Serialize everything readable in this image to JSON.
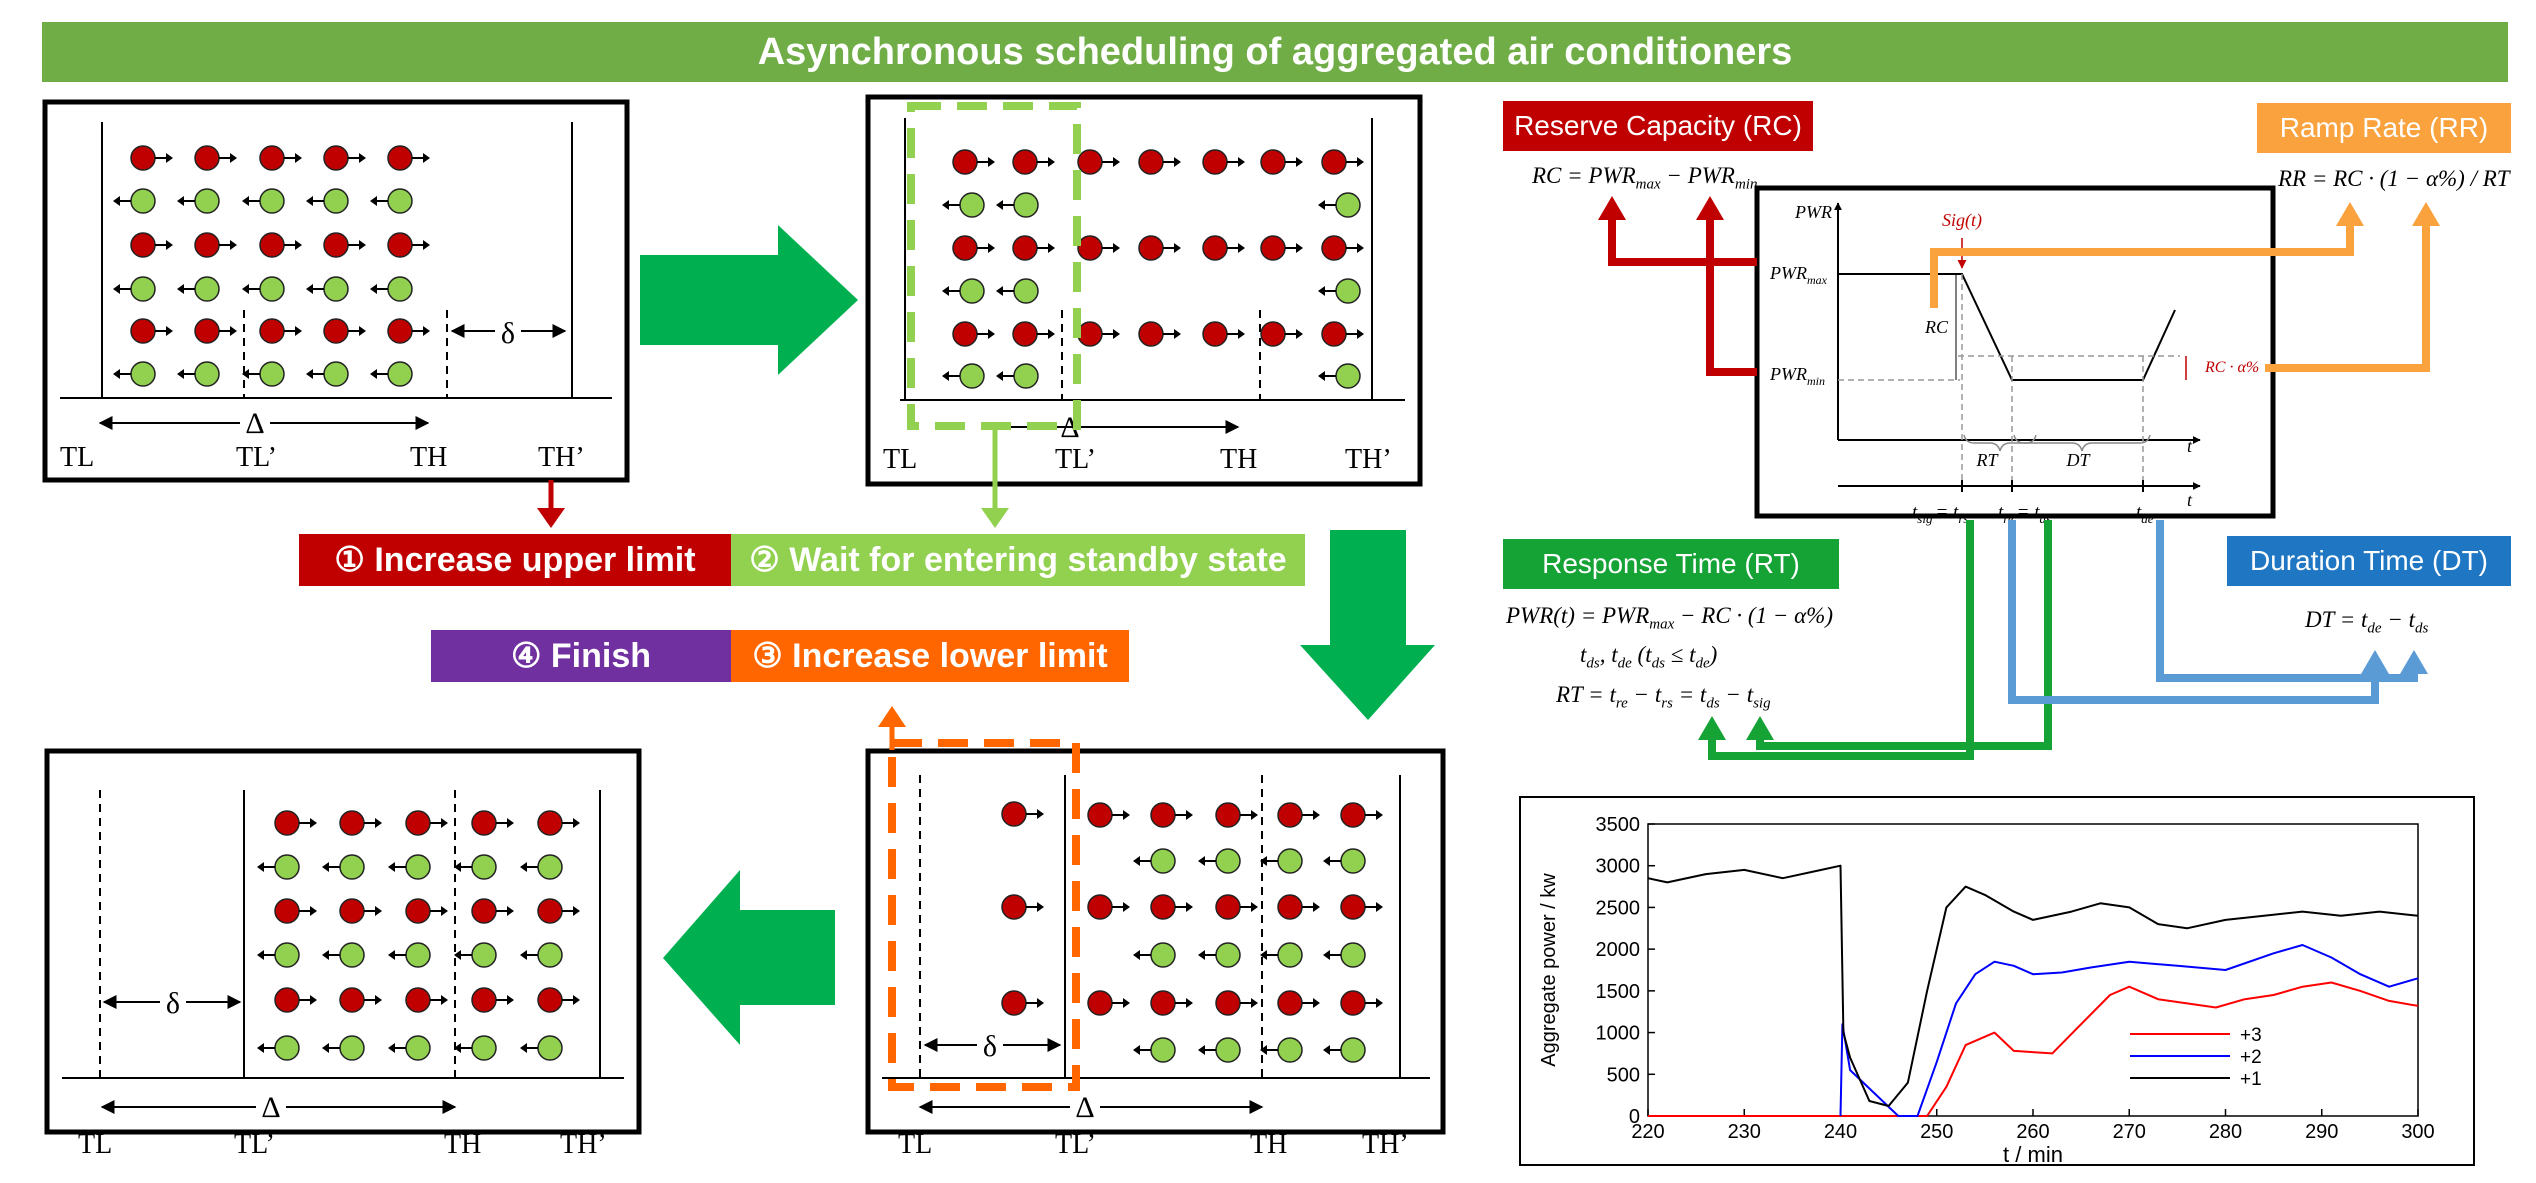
{
  "title": "Asynchronous scheduling of aggregated air conditioners",
  "colors": {
    "banner": "#70ad47",
    "red": "#c00000",
    "light_green": "#92d050",
    "purple": "#7030a0",
    "orange": "#ff6600",
    "flow_arrow_green": "#00b050",
    "rc_red": "#c00000",
    "rr_orange": "#f9a23e",
    "rt_green": "#16a336",
    "dt_blue": "#1f77c4",
    "on_unit_red": "#c00000",
    "off_unit_green": "#92d050"
  },
  "steps": {
    "increase_upper": "① Increase upper limit",
    "wait_standby": "② Wait for entering standby state",
    "finish": "④ Finish",
    "increase_lower": "③ Increase lower limit"
  },
  "state_labels": {
    "t_low": "TL",
    "t_low_prime": "TL’",
    "t_high": "TH",
    "t_high_prime": "TH’",
    "delta_upper": "Δ",
    "delta_lower": "δ"
  },
  "metrics": {
    "rc": "Reserve Capacity (RC)",
    "rr": "Ramp Rate (RR)",
    "rt": "Response Time (RT)",
    "dt": "Duration Time (DT)"
  },
  "equations": {
    "rc": [
      "RC = PWR",
      "max",
      " − PWR",
      "min"
    ],
    "rr": "RR = RC · (1 − α%) / RT",
    "pwr": [
      "PWR(t) = PWR",
      "max",
      " − RC · (1 − α%)"
    ],
    "tds": [
      "t",
      "ds",
      ", t",
      "de",
      " (t",
      "ds",
      " ≤ t",
      "de",
      ")"
    ],
    "rt": [
      "RT = t",
      "re",
      " − t",
      "rs",
      " = t",
      "ds",
      " − t",
      "sig"
    ],
    "dt": [
      "DT = t",
      "de",
      " − t",
      "ds"
    ]
  },
  "profile": {
    "y_axis": "PWR",
    "x_axis": "t",
    "sig": "Sig(t)",
    "pwr_max": "PWR",
    "pwr_max_sub": "max",
    "pwr_min": "PWR",
    "pwr_min_sub": "min",
    "rc": "RC",
    "rc_alpha": "RC · α%",
    "rt": "RT",
    "dt": "DT",
    "t_sig": "t",
    "t_sig_sub": "sig",
    "t_rs": "= t",
    "t_rs_sub": "rs",
    "t_re": "t",
    "t_re_sub": "re",
    "t_ds": "= t",
    "t_ds_sub": "ds",
    "t_de": "t",
    "t_de_sub": "de"
  },
  "chart_data": {
    "type": "line",
    "title": "",
    "xlabel": "t / min",
    "ylabel": "Aggregate power / kw",
    "xlim": [
      220,
      300
    ],
    "ylim": [
      0,
      3500
    ],
    "x_ticks": [
      "220",
      "230",
      "240",
      "250",
      "260",
      "270",
      "280",
      "290",
      "300"
    ],
    "y_ticks": [
      "0",
      "500",
      "1000",
      "1500",
      "2000",
      "2500",
      "3000",
      "3500"
    ],
    "legend_position": "bottom-right",
    "series": [
      {
        "name": "+3",
        "color": "#ff0000",
        "x": [
          220,
          240,
          240.2,
          249,
          251,
          253,
          256,
          258,
          262,
          265,
          268,
          270,
          273,
          276,
          279,
          282,
          285,
          288,
          291,
          294,
          297,
          300
        ],
        "y": [
          0,
          0,
          0,
          0,
          350,
          850,
          1000,
          780,
          750,
          1100,
          1450,
          1550,
          1400,
          1350,
          1300,
          1400,
          1450,
          1550,
          1600,
          1500,
          1380,
          1320
        ]
      },
      {
        "name": "+2",
        "color": "#0000ff",
        "x": [
          240,
          240.2,
          241,
          246,
          248,
          250,
          252,
          254,
          256,
          258,
          260,
          263,
          266,
          270,
          275,
          280,
          285,
          288,
          291,
          294,
          297,
          300
        ],
        "y": [
          0,
          1100,
          550,
          0,
          0,
          650,
          1350,
          1700,
          1850,
          1800,
          1700,
          1720,
          1780,
          1850,
          1800,
          1750,
          1950,
          2050,
          1900,
          1700,
          1550,
          1650
        ]
      },
      {
        "name": "+1",
        "color": "#000000",
        "x": [
          220,
          222,
          226,
          230,
          234,
          238,
          240,
          240.3,
          241,
          243,
          245,
          247,
          249,
          251,
          253,
          255,
          258,
          260,
          264,
          267,
          270,
          273,
          276,
          280,
          284,
          288,
          292,
          296,
          300
        ],
        "y": [
          2850,
          2800,
          2900,
          2950,
          2850,
          2950,
          3000,
          1000,
          700,
          180,
          120,
          400,
          1500,
          2500,
          2750,
          2650,
          2450,
          2350,
          2450,
          2550,
          2500,
          2300,
          2250,
          2350,
          2400,
          2450,
          2400,
          2450,
          2400
        ]
      }
    ]
  }
}
